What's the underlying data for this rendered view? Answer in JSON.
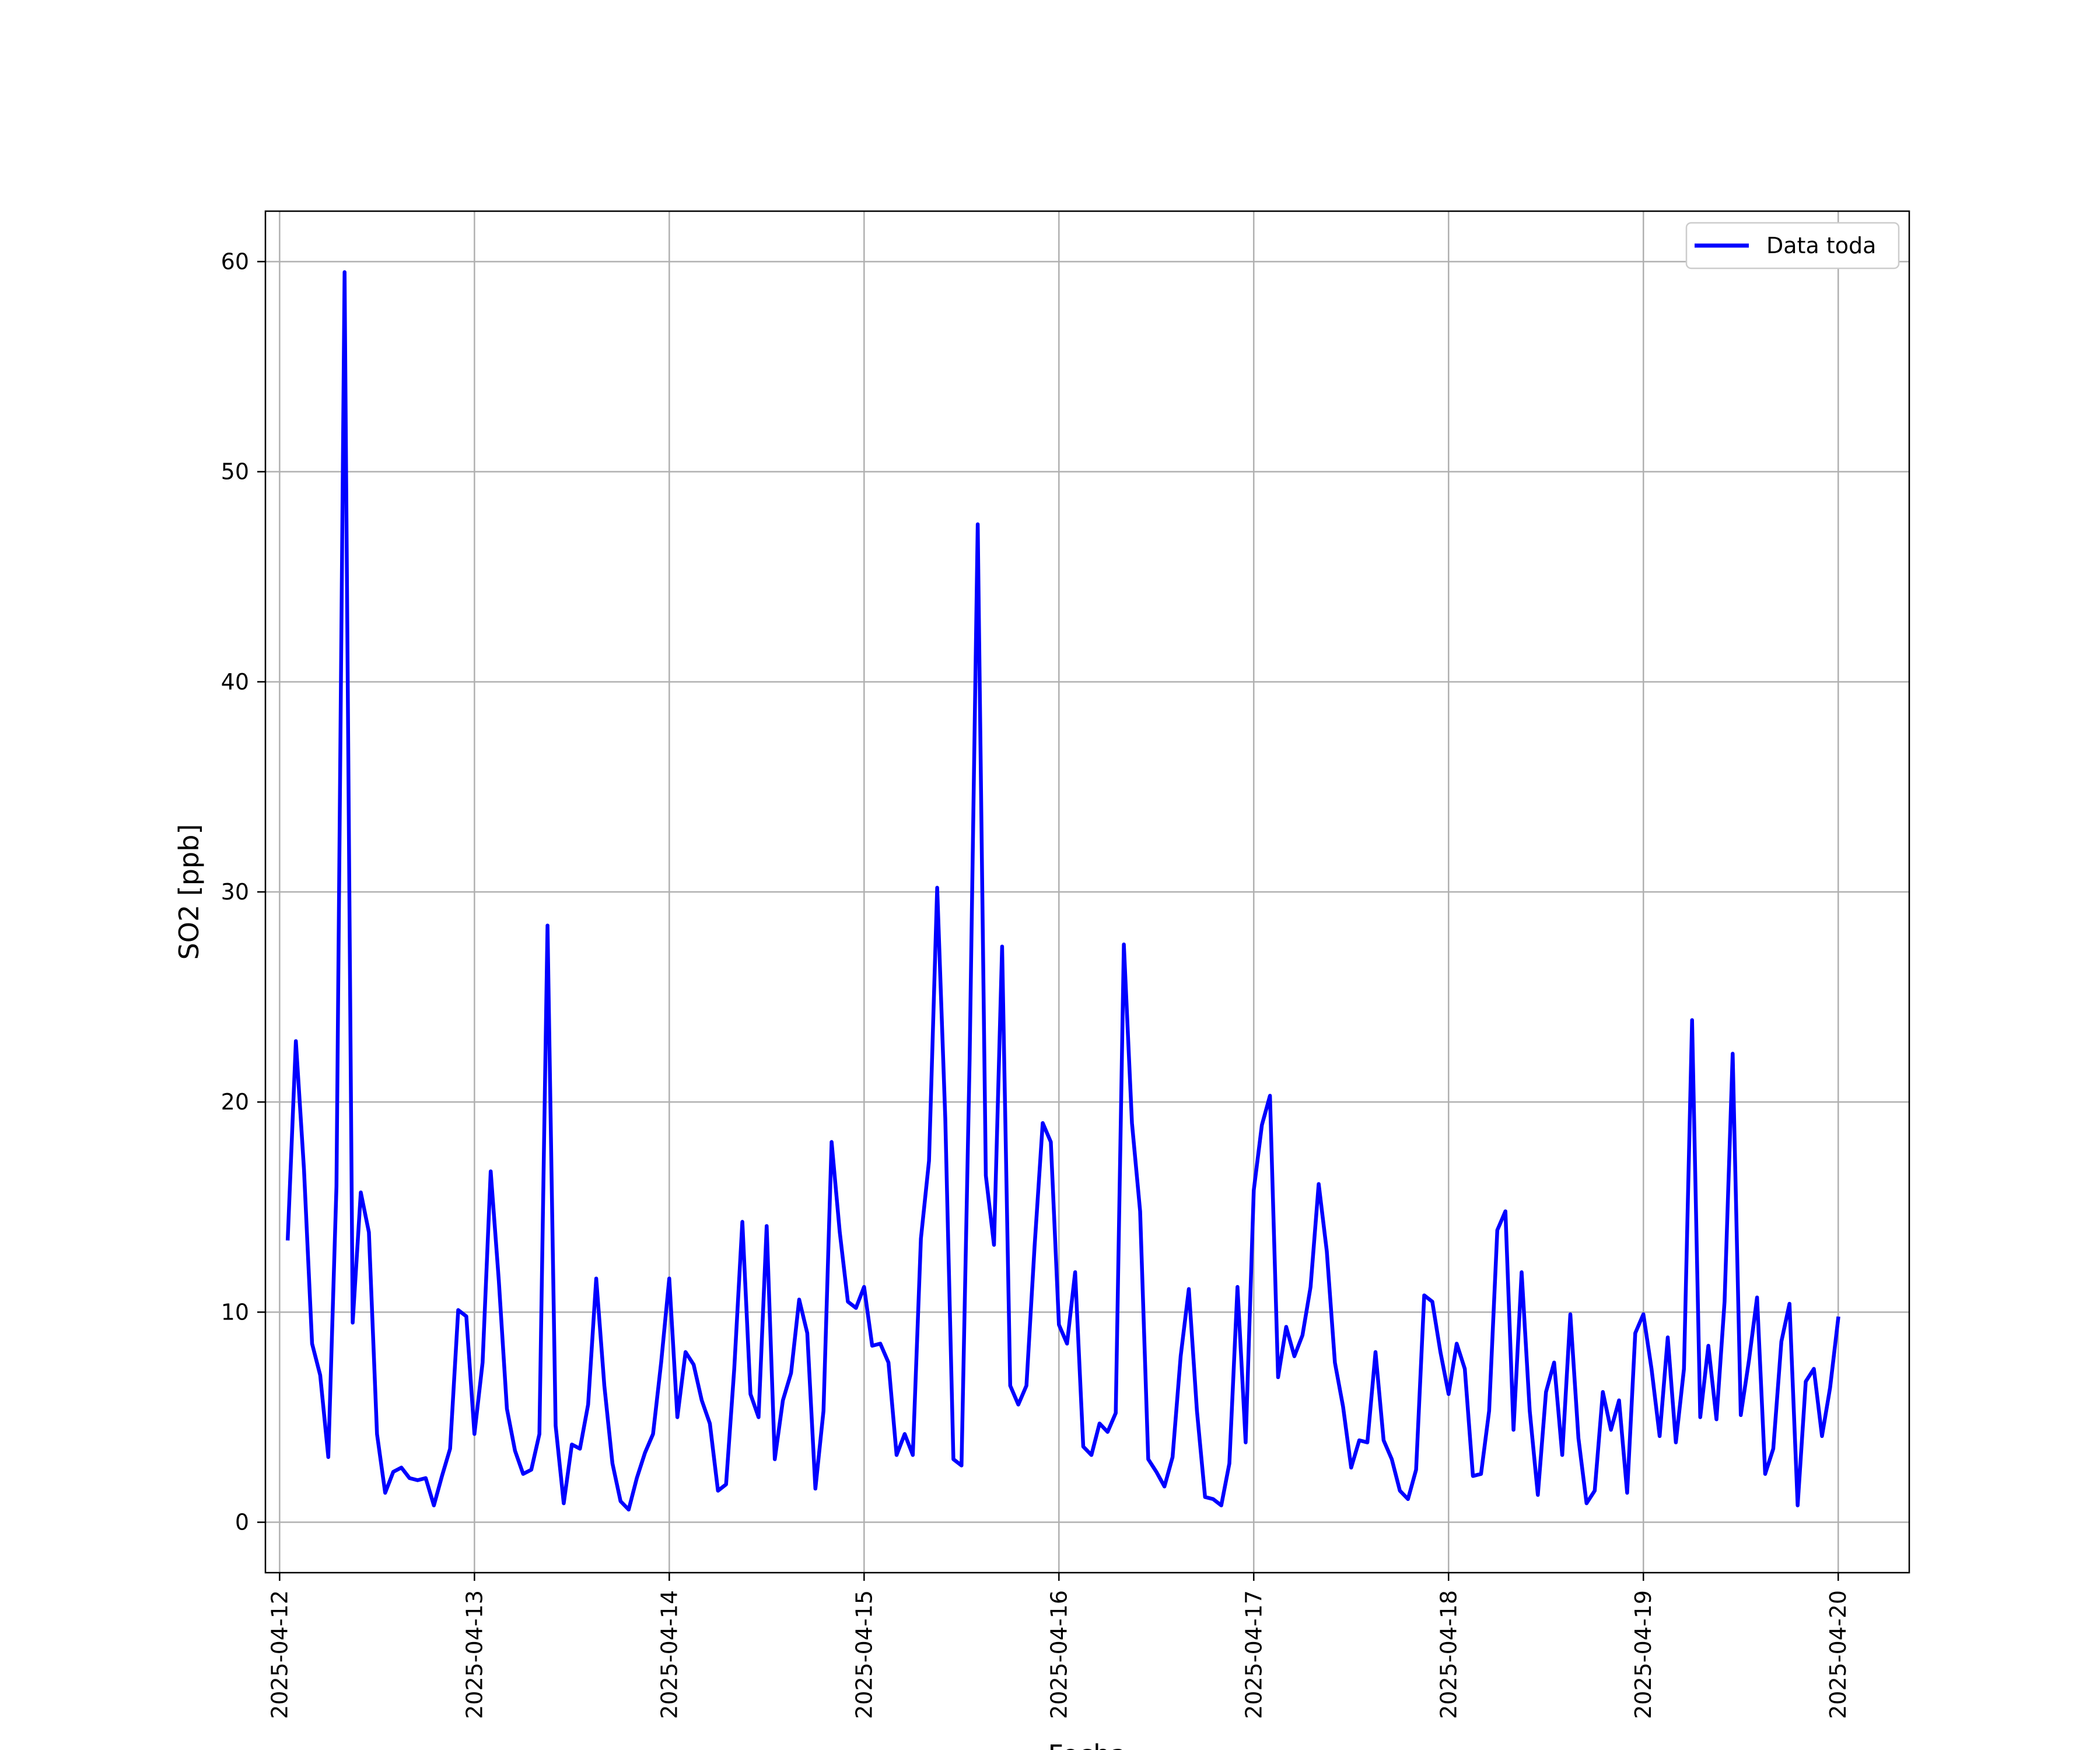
{
  "chart_data": {
    "type": "line",
    "xlabel": "Fecha",
    "ylabel": "SO2 [ppb]",
    "ylim": [
      -2.4,
      62.4
    ],
    "yticks": [
      0,
      10,
      20,
      30,
      40,
      50,
      60
    ],
    "xticks": [
      "2025-04-12",
      "2025-04-13",
      "2025-04-14",
      "2025-04-15",
      "2025-04-16",
      "2025-04-17",
      "2025-04-18",
      "2025-04-19",
      "2025-04-20"
    ],
    "grid": true,
    "legend_position": "top-right",
    "x_start": "2025-04-12 01:00",
    "x_step_hours": 1,
    "series": [
      {
        "name": "Data toda",
        "color": "#0000ff",
        "values": [
          13.5,
          22.9,
          16.8,
          8.5,
          7.0,
          3.1,
          16.0,
          59.5,
          9.5,
          15.7,
          13.8,
          4.2,
          1.4,
          2.4,
          2.6,
          2.1,
          2.0,
          2.1,
          0.8,
          2.2,
          3.5,
          10.1,
          9.8,
          4.2,
          7.6,
          16.7,
          11.5,
          5.4,
          3.4,
          2.3,
          2.5,
          4.2,
          28.4,
          4.6,
          0.9,
          3.7,
          3.5,
          5.6,
          11.6,
          6.5,
          2.8,
          1.0,
          0.6,
          2.1,
          3.3,
          4.2,
          7.6,
          11.6,
          5.0,
          8.1,
          7.5,
          5.8,
          4.7,
          1.5,
          1.8,
          7.3,
          14.3,
          6.1,
          5.0,
          14.1,
          3.0,
          5.8,
          7.1,
          10.6,
          9.0,
          1.6,
          5.3,
          18.1,
          13.8,
          10.5,
          10.2,
          11.2,
          8.4,
          8.5,
          7.6,
          3.2,
          4.2,
          3.2,
          13.5,
          17.2,
          30.2,
          19.2,
          3.0,
          2.7,
          22.0,
          47.5,
          16.5,
          13.2,
          27.4,
          6.5,
          5.6,
          6.5,
          13.1,
          19.0,
          18.1,
          9.4,
          8.5,
          11.9,
          3.6,
          3.2,
          4.7,
          4.3,
          5.2,
          27.5,
          19.0,
          14.8,
          3.0,
          2.4,
          1.7,
          3.1,
          7.9,
          11.1,
          5.3,
          1.2,
          1.1,
          0.8,
          2.8,
          11.2,
          3.8,
          15.8,
          18.9,
          20.3,
          6.9,
          9.3,
          7.9,
          8.9,
          11.2,
          16.1,
          12.9,
          7.6,
          5.5,
          2.6,
          3.9,
          3.8,
          8.1,
          3.9,
          3.0,
          1.5,
          1.1,
          2.5,
          10.8,
          10.5,
          8.1,
          6.1,
          8.5,
          7.3,
          2.2,
          2.3,
          5.3,
          13.9,
          14.8,
          4.4,
          11.9,
          5.3,
          1.3,
          6.2,
          7.6,
          3.2,
          9.9,
          4.0,
          0.9,
          1.5,
          6.2,
          4.4,
          5.8,
          1.4,
          9.0,
          9.9,
          7.3,
          4.1,
          8.8,
          3.8,
          7.3,
          23.9,
          5.0,
          8.4,
          4.9,
          10.5,
          22.3,
          5.1,
          7.7,
          10.7,
          2.3,
          3.5,
          8.6,
          10.4,
          0.8,
          6.7,
          7.3,
          4.1,
          6.4,
          9.7
        ]
      }
    ]
  }
}
